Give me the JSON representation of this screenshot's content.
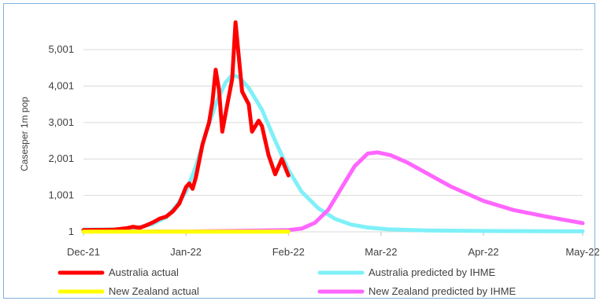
{
  "chart_data": {
    "type": "line",
    "title": "",
    "xlabel": "",
    "ylabel": "Casesper 1m pop",
    "y_ticks": [
      "1",
      "1,001",
      "2,001",
      "3,001",
      "4,001",
      "5,001"
    ],
    "x_ticks": [
      "Dec-21",
      "Jan-22",
      "Feb-22",
      "Mar-22",
      "Apr-22",
      "May-22"
    ],
    "x_tick_dates": [
      "2021-12-01",
      "2022-01-01",
      "2022-02-01",
      "2022-03-01",
      "2022-04-01",
      "2022-05-01"
    ],
    "ylim": [
      1,
      5801
    ],
    "xlim": [
      "2021-12-01",
      "2022-05-01"
    ],
    "grid": "horizontal",
    "legend_position": "bottom",
    "series": [
      {
        "name": "Australia actual",
        "color": "#ff0000",
        "points": [
          [
            "2021-12-01",
            50
          ],
          [
            "2021-12-10",
            60
          ],
          [
            "2021-12-14",
            100
          ],
          [
            "2021-12-16",
            140
          ],
          [
            "2021-12-18",
            110
          ],
          [
            "2021-12-20",
            180
          ],
          [
            "2021-12-22",
            260
          ],
          [
            "2021-12-24",
            360
          ],
          [
            "2021-12-26",
            420
          ],
          [
            "2021-12-28",
            560
          ],
          [
            "2021-12-30",
            780
          ],
          [
            "2022-01-01",
            1230
          ],
          [
            "2022-01-02",
            1330
          ],
          [
            "2022-01-03",
            1180
          ],
          [
            "2022-01-04",
            1500
          ],
          [
            "2022-01-06",
            2400
          ],
          [
            "2022-01-08",
            3000
          ],
          [
            "2022-01-09",
            3550
          ],
          [
            "2022-01-10",
            4450
          ],
          [
            "2022-01-11",
            3900
          ],
          [
            "2022-01-12",
            2750
          ],
          [
            "2022-01-13",
            3250
          ],
          [
            "2022-01-15",
            4200
          ],
          [
            "2022-01-16",
            5750
          ],
          [
            "2022-01-17",
            4800
          ],
          [
            "2022-01-18",
            3850
          ],
          [
            "2022-01-20",
            3500
          ],
          [
            "2022-01-21",
            2750
          ],
          [
            "2022-01-23",
            3050
          ],
          [
            "2022-01-24",
            2900
          ],
          [
            "2022-01-26",
            2100
          ],
          [
            "2022-01-28",
            1580
          ],
          [
            "2022-01-30",
            2000
          ],
          [
            "2022-02-01",
            1550
          ]
        ]
      },
      {
        "name": "Australia predicted by IHME",
        "color": "#7ff0f8",
        "points": [
          [
            "2021-12-01",
            60
          ],
          [
            "2021-12-12",
            70
          ],
          [
            "2021-12-18",
            130
          ],
          [
            "2021-12-22",
            220
          ],
          [
            "2021-12-26",
            400
          ],
          [
            "2021-12-29",
            700
          ],
          [
            "2022-01-01",
            1100
          ],
          [
            "2022-01-04",
            1800
          ],
          [
            "2022-01-07",
            2700
          ],
          [
            "2022-01-10",
            3500
          ],
          [
            "2022-01-13",
            4100
          ],
          [
            "2022-01-15",
            4300
          ],
          [
            "2022-01-17",
            4250
          ],
          [
            "2022-01-20",
            3950
          ],
          [
            "2022-01-24",
            3350
          ],
          [
            "2022-01-28",
            2500
          ],
          [
            "2022-02-01",
            1700
          ],
          [
            "2022-02-05",
            1100
          ],
          [
            "2022-02-10",
            650
          ],
          [
            "2022-02-15",
            360
          ],
          [
            "2022-02-20",
            200
          ],
          [
            "2022-02-25",
            120
          ],
          [
            "2022-03-03",
            70
          ],
          [
            "2022-03-15",
            40
          ],
          [
            "2022-04-01",
            25
          ],
          [
            "2022-05-01",
            15
          ]
        ]
      },
      {
        "name": "New Zealand actual",
        "color": "#ffff00",
        "points": [
          [
            "2021-12-01",
            5
          ],
          [
            "2021-12-15",
            5
          ],
          [
            "2022-01-01",
            5
          ],
          [
            "2022-01-15",
            5
          ],
          [
            "2022-02-01",
            5
          ]
        ]
      },
      {
        "name": "New Zealand predicted by IHME",
        "color": "#ff66ff",
        "points": [
          [
            "2021-12-01",
            10
          ],
          [
            "2022-01-01",
            10
          ],
          [
            "2022-01-15",
            25
          ],
          [
            "2022-02-01",
            50
          ],
          [
            "2022-02-05",
            90
          ],
          [
            "2022-02-09",
            250
          ],
          [
            "2022-02-13",
            600
          ],
          [
            "2022-02-17",
            1200
          ],
          [
            "2022-02-21",
            1800
          ],
          [
            "2022-02-25",
            2150
          ],
          [
            "2022-02-28",
            2180
          ],
          [
            "2022-03-04",
            2100
          ],
          [
            "2022-03-09",
            1900
          ],
          [
            "2022-03-15",
            1600
          ],
          [
            "2022-03-22",
            1250
          ],
          [
            "2022-04-01",
            850
          ],
          [
            "2022-04-10",
            600
          ],
          [
            "2022-04-20",
            420
          ],
          [
            "2022-05-01",
            240
          ]
        ]
      }
    ]
  }
}
